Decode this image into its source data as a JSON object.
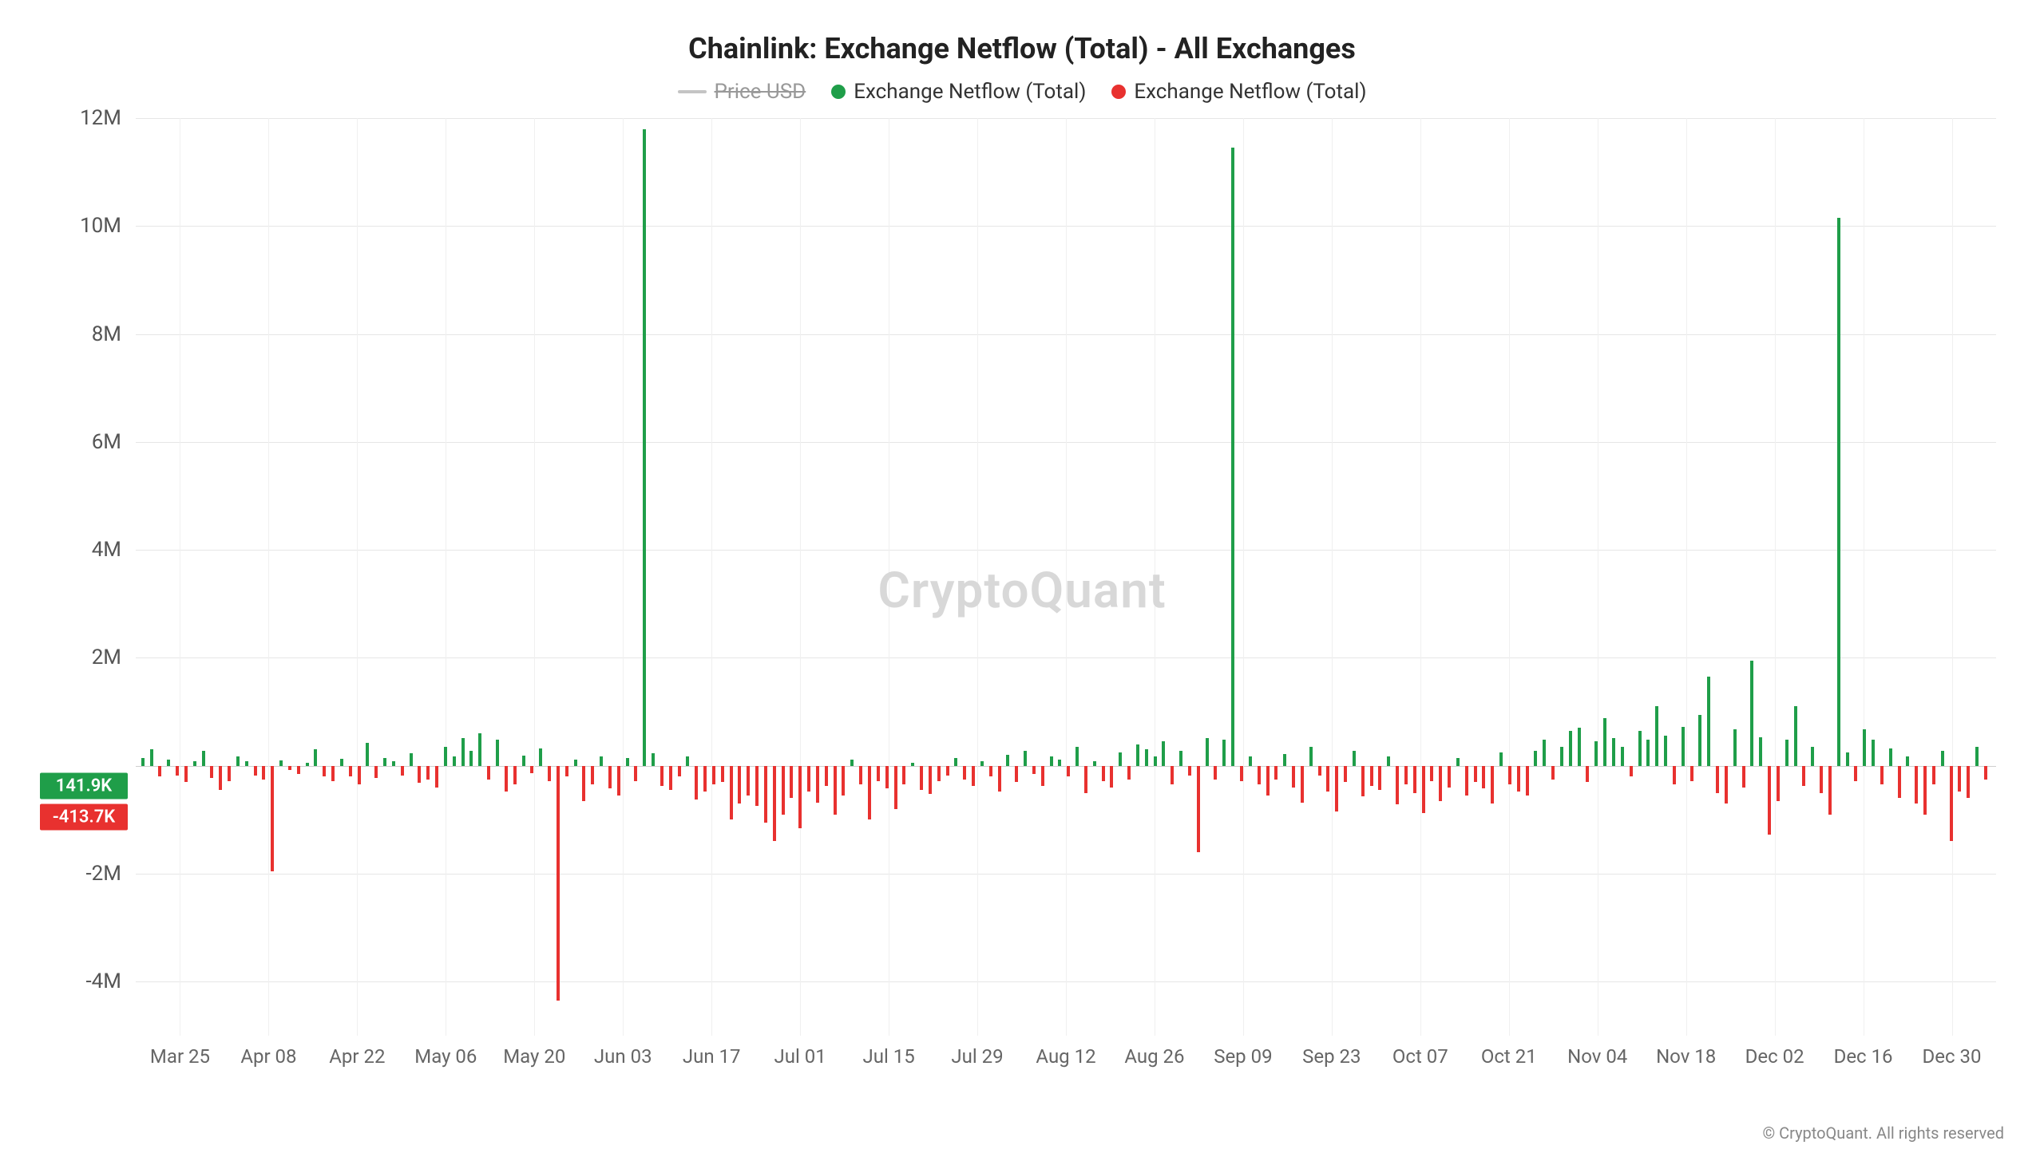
{
  "title": "Chainlink: Exchange Netflow (Total) - All Exchanges",
  "legend": [
    {
      "label": "Price USD",
      "type": "line",
      "color": "#c4c4c4",
      "strike": true
    },
    {
      "label": "Exchange Netflow (Total)",
      "type": "dot",
      "color": "#1f9e49"
    },
    {
      "label": "Exchange Netflow (Total)",
      "type": "dot",
      "color": "#e8312f"
    }
  ],
  "colors": {
    "positive": "#1f9e49",
    "negative": "#e8312f",
    "grid": "#e6e6e6",
    "grid_v": "#f0f0f0",
    "axis_text": "#555",
    "background": "#ffffff",
    "watermark": "#d8d8d8"
  },
  "y_axis": {
    "min": -5000000,
    "max": 12000000,
    "ticks": [
      {
        "v": 12000000,
        "label": "12M"
      },
      {
        "v": 10000000,
        "label": "10M"
      },
      {
        "v": 8000000,
        "label": "8M"
      },
      {
        "v": 6000000,
        "label": "6M"
      },
      {
        "v": 4000000,
        "label": "4M"
      },
      {
        "v": 2000000,
        "label": "2M"
      },
      {
        "v": -2000000,
        "label": "-2M"
      },
      {
        "v": -4000000,
        "label": "-4M"
      }
    ]
  },
  "badges": [
    {
      "label": "141.9K",
      "value": 141900,
      "bg": "#1f9e49"
    },
    {
      "label": "-413.7K",
      "value": -413700,
      "bg": "#e8312f"
    }
  ],
  "x_axis": {
    "labels": [
      "Mar 25",
      "Apr 08",
      "Apr 22",
      "May 06",
      "May 20",
      "Jun 03",
      "Jun 17",
      "Jul 01",
      "Jul 15",
      "Jul 29",
      "Aug 12",
      "Aug 26",
      "Sep 09",
      "Sep 23",
      "Oct 07",
      "Oct 21",
      "Nov 04",
      "Nov 18",
      "Dec 02",
      "Dec 16",
      "Dec 30"
    ]
  },
  "watermark": "CryptoQuant",
  "copyright": "© CryptoQuant. All rights reserved",
  "data": [
    150000,
    300000,
    -200000,
    120000,
    -180000,
    -300000,
    80000,
    280000,
    -220000,
    -450000,
    -280000,
    180000,
    90000,
    -180000,
    -260000,
    -1950000,
    100000,
    -80000,
    -150000,
    60000,
    300000,
    -200000,
    -280000,
    130000,
    -190000,
    -350000,
    420000,
    -220000,
    150000,
    80000,
    -180000,
    230000,
    -320000,
    -260000,
    -400000,
    350000,
    180000,
    520000,
    280000,
    600000,
    -250000,
    480000,
    -480000,
    -350000,
    190000,
    -140000,
    320000,
    -280000,
    -4350000,
    -200000,
    120000,
    -650000,
    -350000,
    180000,
    -420000,
    -550000,
    150000,
    -280000,
    11800000,
    230000,
    -380000,
    -450000,
    -200000,
    180000,
    -620000,
    -480000,
    -350000,
    -300000,
    -1000000,
    -700000,
    -550000,
    -750000,
    -1050000,
    -1400000,
    -900000,
    -600000,
    -1150000,
    -480000,
    -680000,
    -380000,
    -900000,
    -550000,
    120000,
    -350000,
    -1000000,
    -280000,
    -420000,
    -800000,
    -350000,
    60000,
    -450000,
    -520000,
    -280000,
    -180000,
    150000,
    -250000,
    -380000,
    90000,
    -200000,
    -480000,
    200000,
    -300000,
    280000,
    -150000,
    -380000,
    180000,
    120000,
    -200000,
    350000,
    -500000,
    80000,
    -280000,
    -400000,
    250000,
    -250000,
    400000,
    300000,
    180000,
    450000,
    -350000,
    280000,
    -180000,
    -1600000,
    520000,
    -250000,
    480000,
    11450000,
    -280000,
    180000,
    -350000,
    -550000,
    -250000,
    220000,
    -400000,
    -680000,
    350000,
    -180000,
    -480000,
    -850000,
    -300000,
    280000,
    -560000,
    -380000,
    -450000,
    180000,
    -720000,
    -350000,
    -500000,
    -880000,
    -280000,
    -650000,
    -400000,
    150000,
    -550000,
    -300000,
    -420000,
    -700000,
    250000,
    -350000,
    -480000,
    -550000,
    280000,
    480000,
    -250000,
    350000,
    640000,
    700000,
    -300000,
    450000,
    880000,
    520000,
    350000,
    -200000,
    640000,
    480000,
    1100000,
    560000,
    -350000,
    720000,
    -280000,
    950000,
    1650000,
    -500000,
    -700000,
    680000,
    -400000,
    1950000,
    530000,
    -1280000,
    -650000,
    480000,
    1100000,
    -380000,
    350000,
    -500000,
    -900000,
    10150000,
    250000,
    -280000,
    680000,
    480000,
    -350000,
    320000,
    -600000,
    180000,
    -700000,
    -900000,
    -350000,
    280000,
    -1400000,
    -480000,
    -600000,
    350000,
    -250000
  ]
}
